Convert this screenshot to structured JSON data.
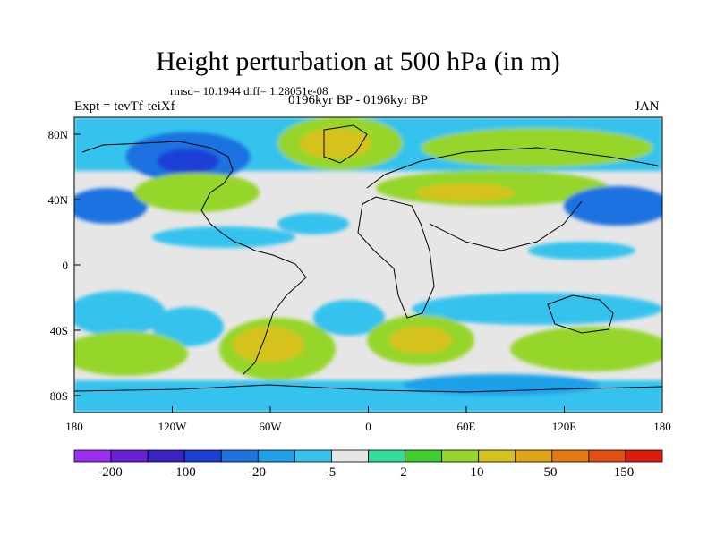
{
  "title": "Height perturbation at 500 hPa (in m)",
  "stats": "rmsd= 10.1944 diff= 1.28051e-08",
  "expt": "Expt = tevTf-teiXf",
  "period": "0196kyr BP - 0196kyr BP",
  "month": "JAN",
  "lat_labels": [
    "80N",
    "40N",
    "0",
    "40S",
    "80S"
  ],
  "lon_labels": [
    "180",
    "120W",
    "60W",
    "0",
    "60E",
    "120E",
    "180"
  ],
  "colorbar": {
    "colors": [
      "#9a2ef2",
      "#6a20d8",
      "#3b22c4",
      "#1a3fd6",
      "#1f72e0",
      "#1ea0ea",
      "#35c3ee",
      "#e6e6e6",
      "#32dd9a",
      "#3fce2e",
      "#96d62a",
      "#d6c21a",
      "#e0a516",
      "#e47a14",
      "#e34e12",
      "#e01a10"
    ],
    "labels": [
      "-200",
      "-100",
      "-20",
      "-5",
      "2",
      "10",
      "50",
      "150"
    ]
  }
}
